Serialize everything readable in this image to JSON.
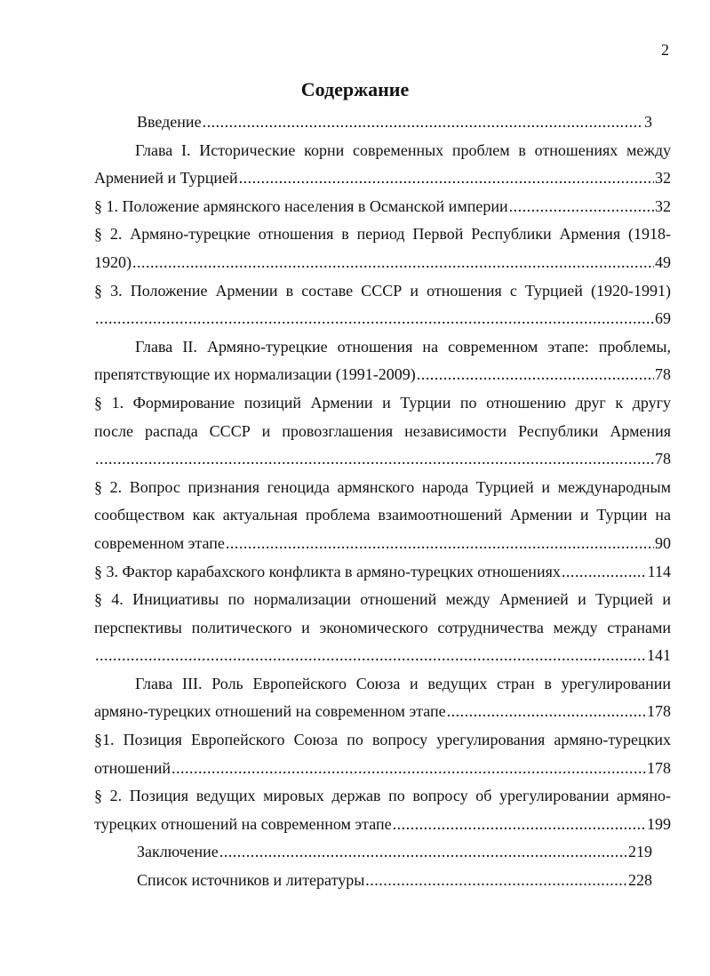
{
  "page_number": "2",
  "title": "Содержание",
  "entries": [
    {
      "lines": [],
      "last": "Введение",
      "page": "3",
      "style": "narrow"
    },
    {
      "lines": [
        "Глава I. Исторические корни современных проблем в отношениях между"
      ],
      "last": "Арменией и Турцией",
      "page": "32",
      "style": "indent"
    },
    {
      "lines": [],
      "last": "§ 1. Положение армянского населения в Османской империи",
      "page": "32",
      "style": ""
    },
    {
      "lines": [
        "§ 2. Армяно-турецкие отношения в период Первой Республики Армения (1918-"
      ],
      "last": "1920)",
      "page": "49",
      "style": ""
    },
    {
      "lines": [
        "§ 3. Положение Армении в составе СССР и отношения с Турцией (1920-1991)"
      ],
      "last": "",
      "page": "69",
      "style": ""
    },
    {
      "lines": [
        "Глава II. Армяно-турецкие отношения на современном этапе: проблемы,"
      ],
      "last": "препятствующие их нормализации (1991-2009)",
      "page": "78",
      "style": "indent"
    },
    {
      "lines": [
        "§ 1. Формирование позиций Армении и Турции по отношению друг к другу",
        "после распада СССР и провозглашения независимости Республики Армения"
      ],
      "last": "",
      "page": "78",
      "style": ""
    },
    {
      "lines": [
        "§ 2. Вопрос признания геноцида армянского народа Турцией и международным",
        "сообществом как актуальная проблема взаимоотношений Армении и Турции на"
      ],
      "last": "современном этапе",
      "page": "90",
      "style": ""
    },
    {
      "lines": [],
      "last": "§ 3. Фактор карабахского конфликта в армяно-турецких отношениях",
      "page": "114",
      "style": ""
    },
    {
      "lines": [
        "§ 4. Инициативы по нормализации отношений между Арменией и Турцией и",
        "перспективы политического и экономического сотрудничества между странами"
      ],
      "last": "",
      "page": "141",
      "style": ""
    },
    {
      "lines": [
        "Глава III. Роль Европейского Союза и ведущих стран в урегулировании"
      ],
      "last": "армяно-турецких отношений на современном этапе",
      "page": "178",
      "style": "indent"
    },
    {
      "lines": [
        "§1. Позиция Европейского Союза по вопросу урегулирования армяно-турецких"
      ],
      "last": "отношений",
      "page": "178",
      "style": ""
    },
    {
      "lines": [
        "§ 2. Позиция ведущих мировых держав по вопросу об урегулировании армяно-"
      ],
      "last": "турецких отношений на современном этапе",
      "page": "199",
      "style": ""
    },
    {
      "lines": [],
      "last": "Заключение",
      "page": "219",
      "style": "narrow"
    },
    {
      "lines": [],
      "last": "Список источников и литературы",
      "page": "228",
      "style": "narrow"
    }
  ]
}
